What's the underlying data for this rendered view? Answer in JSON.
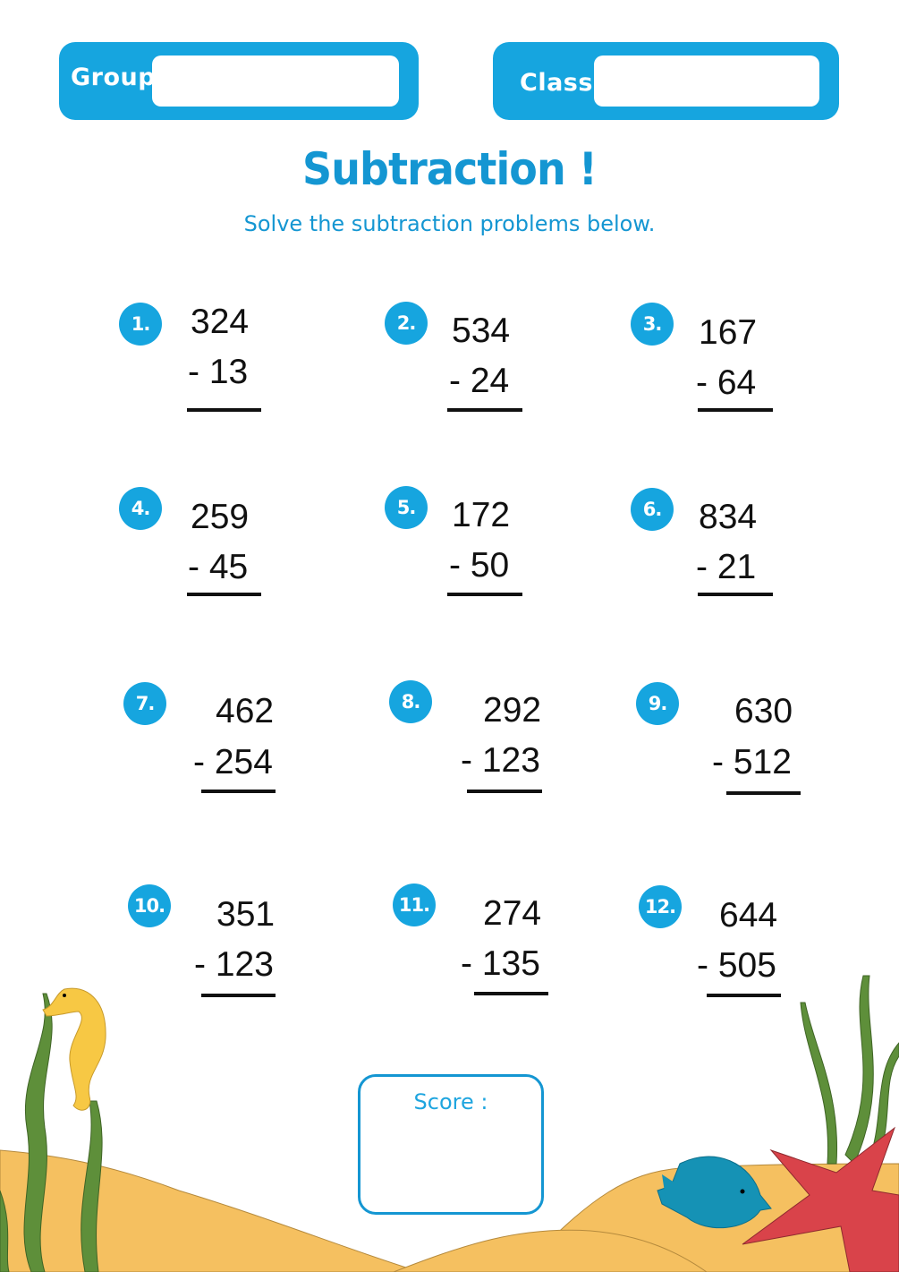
{
  "header": {
    "group_label": "Group",
    "group_value": "",
    "class_label": "Class",
    "class_value": ""
  },
  "title": "Subtraction !",
  "subtitle": "Solve the subtraction problems below.",
  "problems": [
    {
      "label": "1.",
      "top": "324",
      "bottom": "- 13"
    },
    {
      "label": "2.",
      "top": "534",
      "bottom": "- 24"
    },
    {
      "label": "3.",
      "top": "167",
      "bottom": "- 64"
    },
    {
      "label": "4.",
      "top": "259",
      "bottom": "- 45"
    },
    {
      "label": "5.",
      "top": "172",
      "bottom": "- 50"
    },
    {
      "label": "6.",
      "top": "834",
      "bottom": "- 21"
    },
    {
      "label": "7.",
      "top": "462",
      "bottom": "- 254"
    },
    {
      "label": "8.",
      "top": "292",
      "bottom": "- 123"
    },
    {
      "label": "9.",
      "top": "630",
      "bottom": "- 512"
    },
    {
      "label": "10.",
      "top": "351",
      "bottom": "- 123"
    },
    {
      "label": "11.",
      "top": "274",
      "bottom": "- 135"
    },
    {
      "label": "12.",
      "top": "644",
      "bottom": "- 505"
    }
  ],
  "score": {
    "label": "Score :",
    "value": ""
  },
  "colors": {
    "accent": "#16a5df",
    "title": "#1496d2",
    "sand": "#f5c060",
    "seaweed": "#5e8f3a",
    "seahorse": "#f7c844",
    "fish": "#1592b5",
    "starfish": "#d9434a"
  },
  "decorations": [
    "seaweed-icon",
    "seahorse-icon",
    "fish-icon",
    "starfish-icon",
    "sand-dunes"
  ]
}
